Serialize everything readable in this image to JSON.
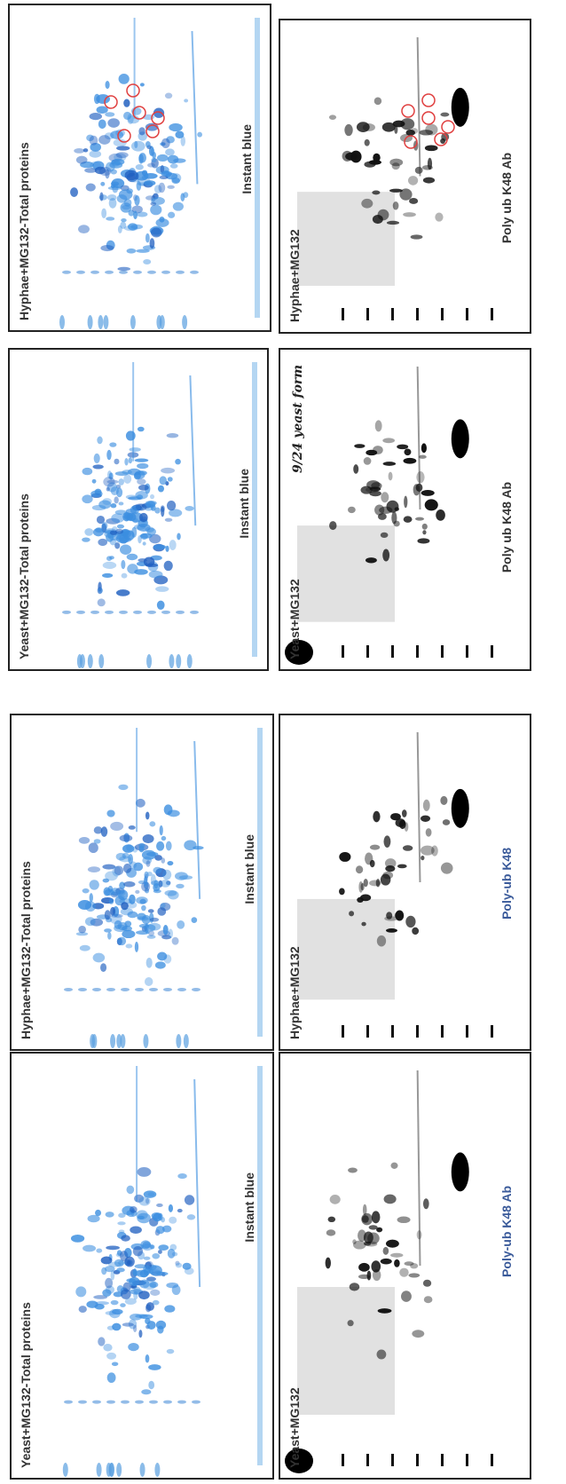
{
  "panels": [
    {
      "label": "Hyphae+MG132-Total proteins",
      "caption": "Instant blue"
    },
    {
      "label": "Hyphae+MG132",
      "caption": "Poly ub K48 Ab"
    },
    {
      "label": "Yeast+MG132-Total proteins",
      "caption": "Instant blue"
    },
    {
      "label": "Yeast+MG132",
      "caption": "Poly ub K48 Ab",
      "note": "9/24 yeast form"
    },
    {
      "label": "Hyphae+MG132-Total proteins",
      "caption": "Instant blue"
    },
    {
      "label": "Hyphae+MG132",
      "caption": "Poly-ub K48"
    },
    {
      "label": "Yeast+MG132-Total proteins",
      "caption": "Instant blue"
    },
    {
      "label": "Yeast+MG132",
      "caption": "Poly-ub K48 Ab"
    }
  ]
}
